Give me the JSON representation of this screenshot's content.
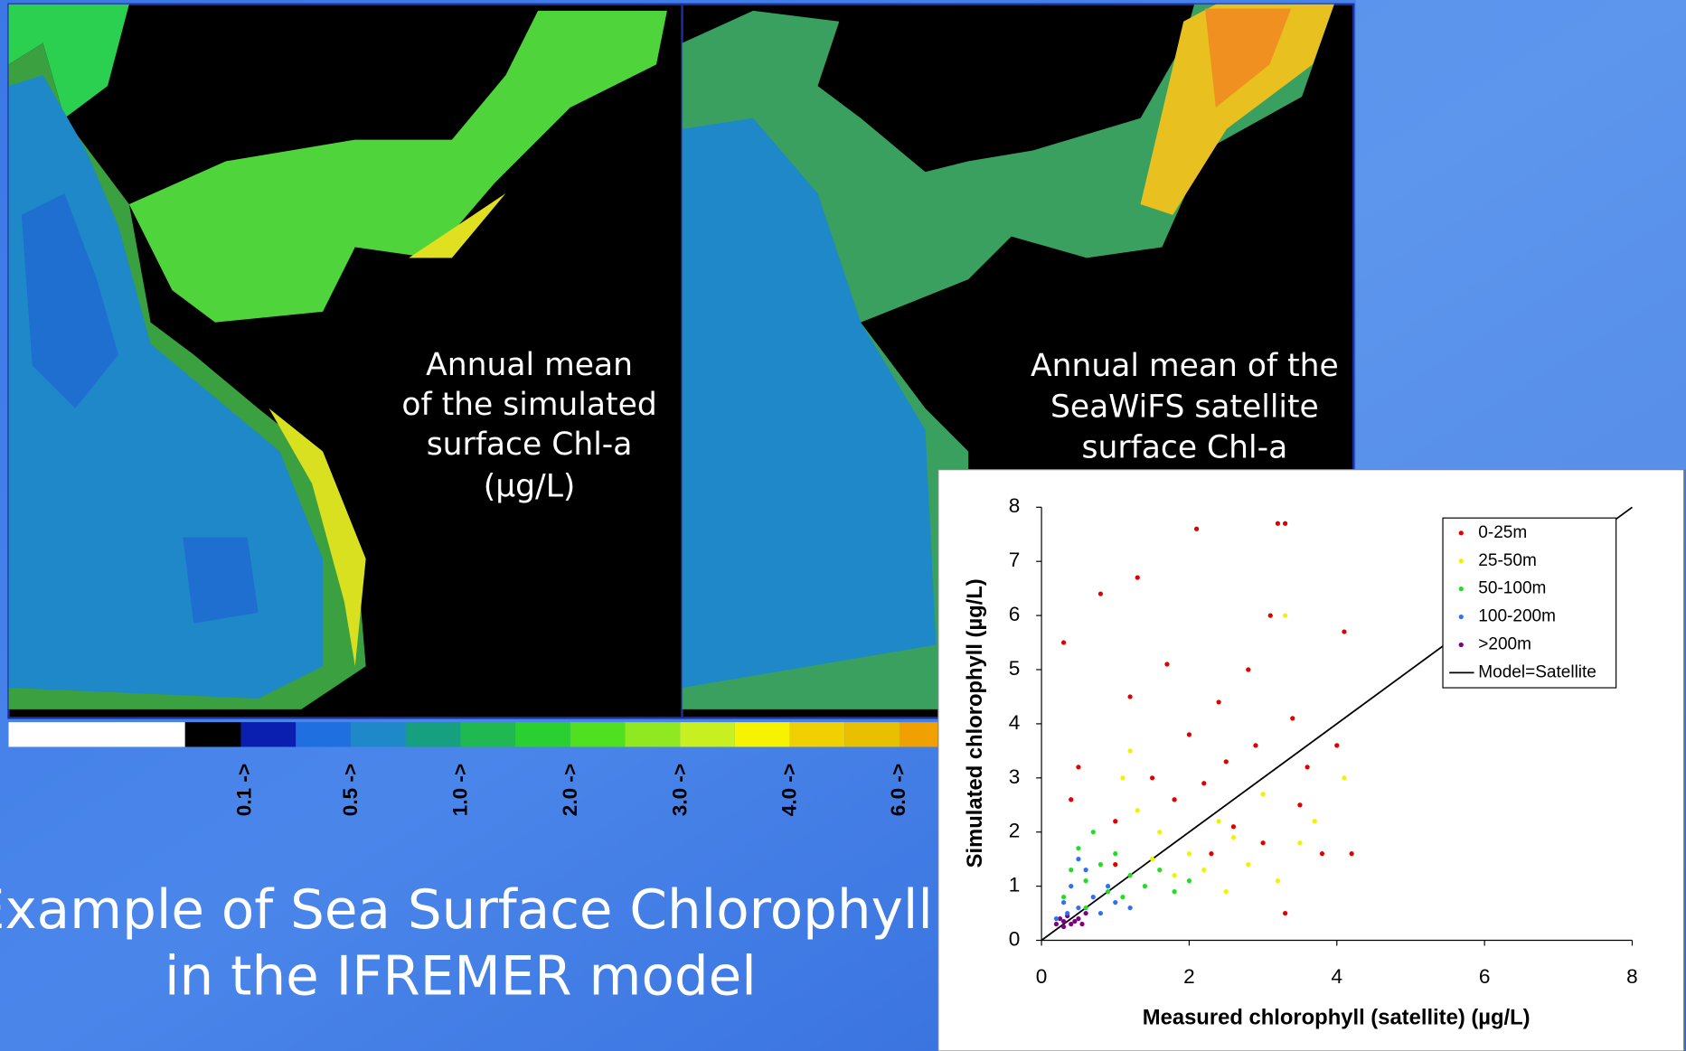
{
  "slide": {
    "title_lines": [
      "Example of Sea Surface Chlorophyll",
      "in the IFREMER model"
    ],
    "left_map_caption": [
      "Annual mean",
      "of the simulated",
      "surface Chl-a",
      "(µg/L)"
    ],
    "right_map_caption": [
      "Annual mean of the",
      "SeaWiFS satellite",
      "surface Chl-a"
    ],
    "colorbar_labels": [
      "0.1 ->",
      "0.5 ->",
      "1.0 ->",
      "2.0 ->",
      "3.0 ->",
      "4.0 ->",
      "6.0 ->"
    ]
  },
  "chart_data": {
    "type": "scatter",
    "xlabel": "Measured chlorophyll (satellite) (µg/L)",
    "ylabel": "Simulated chlorophyll  (µg/L)",
    "xlim": [
      0,
      8
    ],
    "ylim": [
      0,
      8
    ],
    "xticks": [
      0,
      2,
      4,
      6,
      8
    ],
    "yticks": [
      0,
      1,
      2,
      3,
      4,
      5,
      6,
      7,
      8
    ],
    "series": [
      {
        "name": "0-25m",
        "color": "#e00000",
        "x": [
          0.3,
          0.5,
          0.8,
          0.4,
          1.0,
          1.3,
          1.2,
          1.5,
          1.7,
          1.8,
          2.0,
          2.1,
          2.2,
          2.4,
          2.5,
          2.6,
          2.8,
          2.9,
          3.0,
          3.1,
          3.2,
          3.3,
          3.4,
          3.5,
          3.6,
          3.8,
          4.0,
          4.1,
          4.2,
          3.3,
          1.0,
          2.3
        ],
        "values": [
          5.5,
          3.2,
          6.4,
          2.6,
          2.2,
          6.7,
          4.5,
          3.0,
          5.1,
          2.6,
          3.8,
          7.6,
          2.9,
          4.4,
          3.3,
          2.1,
          5.0,
          3.6,
          1.8,
          6.0,
          7.7,
          7.7,
          4.1,
          2.5,
          3.2,
          1.6,
          3.6,
          5.7,
          1.6,
          0.5,
          1.4,
          1.6
        ]
      },
      {
        "name": "25-50m",
        "color": "#f2f200",
        "x": [
          1.1,
          1.3,
          1.5,
          1.6,
          1.8,
          2.0,
          2.2,
          2.4,
          2.6,
          2.8,
          3.0,
          3.2,
          3.3,
          3.5,
          3.7,
          4.1,
          1.2,
          2.5
        ],
        "values": [
          3.0,
          2.4,
          1.5,
          2.0,
          1.2,
          1.6,
          1.3,
          2.2,
          1.9,
          1.4,
          2.7,
          1.1,
          6.0,
          1.8,
          2.2,
          3.0,
          3.5,
          0.9
        ]
      },
      {
        "name": "50-100m",
        "color": "#22dd22",
        "x": [
          0.3,
          0.4,
          0.5,
          0.6,
          0.7,
          0.8,
          0.9,
          1.0,
          1.2,
          1.4,
          1.6,
          1.8,
          2.0,
          0.6,
          1.1
        ],
        "values": [
          0.8,
          1.3,
          1.7,
          1.1,
          2.0,
          1.4,
          0.9,
          1.6,
          1.2,
          1.0,
          1.3,
          0.9,
          1.1,
          0.6,
          0.8
        ]
      },
      {
        "name": "100-200m",
        "color": "#3070f0",
        "x": [
          0.2,
          0.3,
          0.4,
          0.5,
          0.6,
          0.7,
          0.8,
          0.9,
          1.0,
          1.2,
          0.5,
          0.35
        ],
        "values": [
          0.4,
          0.7,
          1.0,
          0.6,
          1.3,
          0.8,
          0.5,
          1.0,
          0.7,
          0.6,
          1.5,
          0.5
        ]
      },
      {
        "name": ">200m",
        "color": "#800080",
        "x": [
          0.2,
          0.25,
          0.3,
          0.35,
          0.4,
          0.45,
          0.5,
          0.55,
          0.6,
          0.3
        ],
        "values": [
          0.3,
          0.4,
          0.25,
          0.45,
          0.3,
          0.35,
          0.4,
          0.3,
          0.5,
          0.35
        ]
      },
      {
        "name": "Model=Satellite",
        "color": "#000000",
        "mode": "line",
        "x": [
          0,
          8
        ],
        "values": [
          0,
          8
        ]
      }
    ]
  }
}
